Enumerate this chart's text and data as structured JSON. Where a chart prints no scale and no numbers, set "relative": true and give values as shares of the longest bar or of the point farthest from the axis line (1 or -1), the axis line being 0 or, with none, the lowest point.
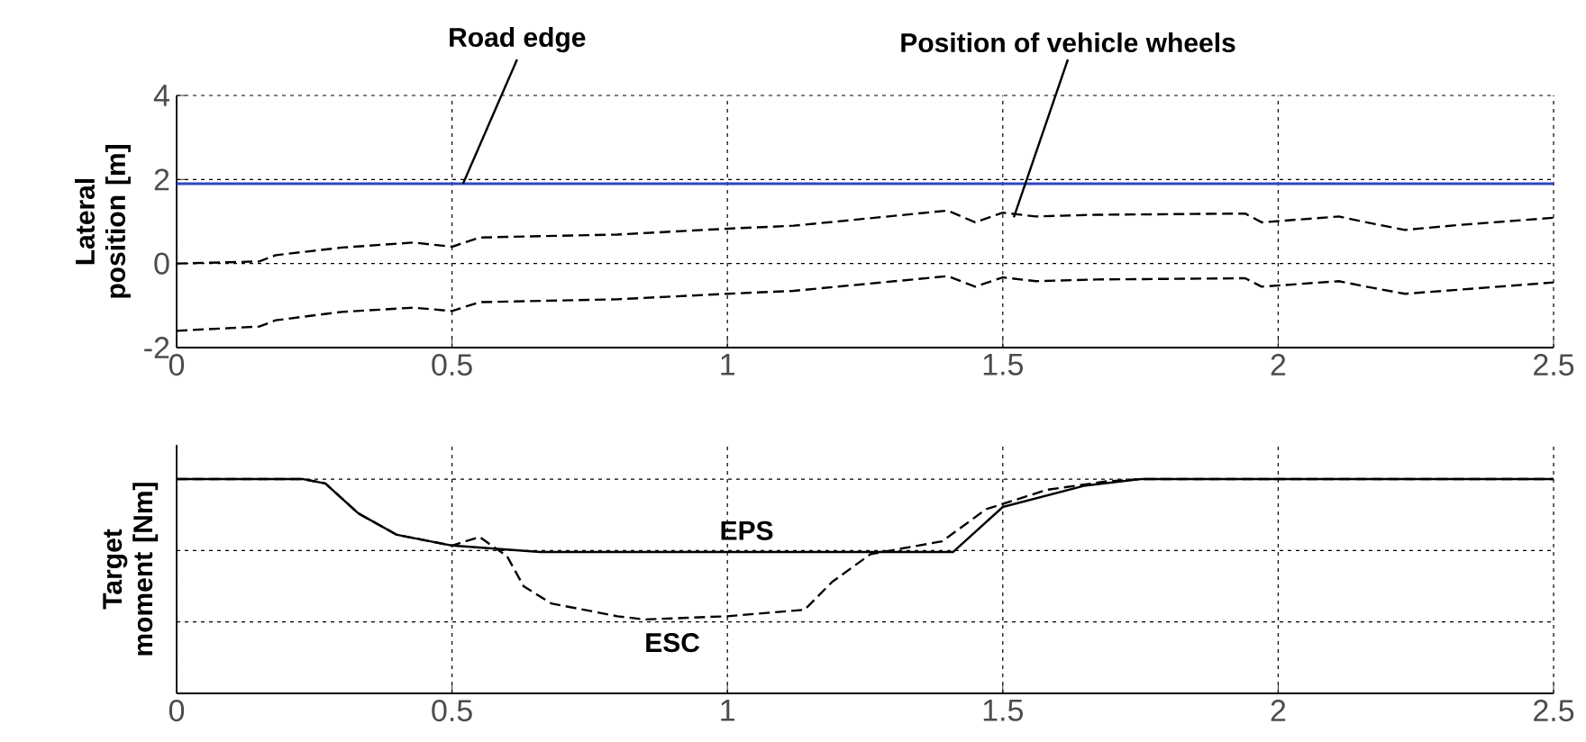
{
  "chart_data": [
    {
      "type": "line",
      "ylabel": "Lateral position [m]",
      "xlim": [
        0,
        2.5
      ],
      "xticks": [
        0,
        0.5,
        1,
        1.5,
        2,
        2.5
      ],
      "ylim": [
        -2,
        4
      ],
      "yticks": [
        -2,
        0,
        2,
        4
      ],
      "grid": true,
      "marker": "none",
      "annotations": [
        {
          "text": "Road edge",
          "x": 0.52,
          "y": 1.9
        },
        {
          "text": "Position of vehicle wheels",
          "x": 1.52,
          "y": 1.1
        }
      ],
      "series": [
        {
          "color": "#2e47c4",
          "line_style": "solid",
          "x": [
            0,
            2.5
          ],
          "values": [
            1.9,
            1.9
          ]
        },
        {
          "color": "#000000",
          "line_style": "dashed",
          "x": [
            0,
            0.15,
            0.18,
            0.3,
            0.43,
            0.5,
            0.55,
            0.8,
            1.0,
            1.12,
            1.4,
            1.45,
            1.5,
            1.56,
            1.67,
            1.94,
            1.97,
            2.11,
            2.16,
            2.23,
            2.33,
            2.5
          ],
          "values": [
            0.0,
            0.05,
            0.2,
            0.38,
            0.5,
            0.4,
            0.62,
            0.69,
            0.83,
            0.9,
            1.26,
            0.98,
            1.21,
            1.12,
            1.16,
            1.19,
            0.98,
            1.12,
            0.98,
            0.8,
            0.92,
            1.09
          ]
        },
        {
          "color": "#000000",
          "line_style": "dashed",
          "x": [
            0,
            0.15,
            0.18,
            0.3,
            0.43,
            0.5,
            0.55,
            0.8,
            1.0,
            1.12,
            1.4,
            1.45,
            1.5,
            1.56,
            1.67,
            1.94,
            1.97,
            2.11,
            2.16,
            2.23,
            2.33,
            2.5
          ],
          "values": [
            -1.6,
            -1.5,
            -1.35,
            -1.15,
            -1.05,
            -1.13,
            -0.92,
            -0.85,
            -0.72,
            -0.65,
            -0.3,
            -0.55,
            -0.33,
            -0.42,
            -0.38,
            -0.35,
            -0.55,
            -0.42,
            -0.55,
            -0.72,
            -0.62,
            -0.45
          ]
        }
      ]
    },
    {
      "type": "line",
      "relative": true,
      "ylabel": "Target moment [Nm]",
      "xlim": [
        0,
        2.5
      ],
      "xticks": [
        0,
        0.5,
        1,
        1.5,
        2,
        2.5
      ],
      "grid": true,
      "marker": "none",
      "series": [
        {
          "name": "EPS",
          "color": "#000000",
          "line_style": "solid",
          "x": [
            0,
            0.23,
            0.27,
            0.33,
            0.4,
            0.5,
            0.66,
            1.41,
            1.5,
            1.65,
            1.75,
            2.5
          ],
          "values": [
            1,
            1,
            0.98,
            0.84,
            0.74,
            0.69,
            0.66,
            0.66,
            0.87,
            0.97,
            1,
            1
          ]
        },
        {
          "name": "ESC",
          "color": "#000000",
          "line_style": "dashed",
          "x": [
            0,
            0.23,
            0.27,
            0.33,
            0.4,
            0.5,
            0.55,
            0.6,
            0.63,
            0.68,
            0.8,
            0.85,
            1.0,
            1.14,
            1.19,
            1.26,
            1.39,
            1.47,
            1.58,
            1.69,
            1.75,
            2.5
          ],
          "values": [
            1,
            1,
            0.98,
            0.84,
            0.74,
            0.69,
            0.73,
            0.64,
            0.5,
            0.42,
            0.36,
            0.345,
            0.36,
            0.39,
            0.52,
            0.65,
            0.71,
            0.86,
            0.95,
            0.99,
            1,
            1
          ]
        }
      ]
    }
  ]
}
